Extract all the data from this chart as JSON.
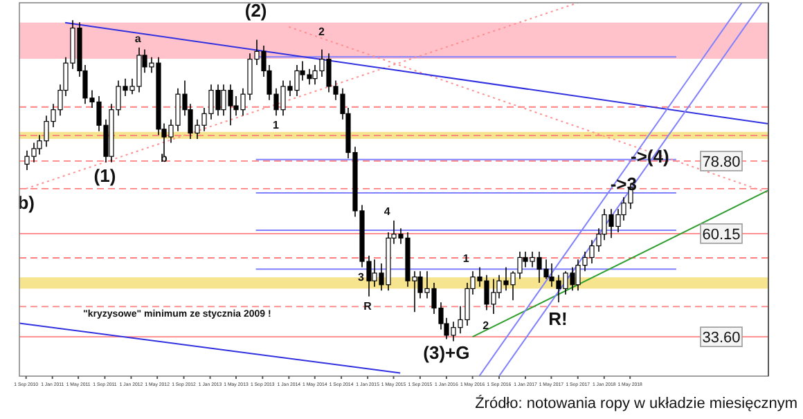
{
  "chart_data": {
    "type": "candlestick",
    "xlim": [
      "2010-08",
      "2020-02"
    ],
    "ylim": [
      23.5,
      119.5
    ],
    "tick_labels": "x",
    "grid": false,
    "xticks": [
      {
        "value": "2010-09",
        "label": "1 Sep 2010"
      },
      {
        "value": "2011-01",
        "label": "1 Jan 2011"
      },
      {
        "value": "2011-05",
        "label": "1 May 2011"
      },
      {
        "value": "2011-09",
        "label": "1 Sep 2011"
      },
      {
        "value": "2012-01",
        "label": "1 Jan 2012"
      },
      {
        "value": "2012-05",
        "label": "1 May 2012"
      },
      {
        "value": "2012-09",
        "label": "1 Sep 2012"
      },
      {
        "value": "2013-01",
        "label": "1 Jan 2013"
      },
      {
        "value": "2013-05",
        "label": "1 May 2013"
      },
      {
        "value": "2013-09",
        "label": "1 Sep 2013"
      },
      {
        "value": "2014-01",
        "label": "1 Jan 2014"
      },
      {
        "value": "2014-05",
        "label": "1 May 2014"
      },
      {
        "value": "2014-09",
        "label": "1 Sep 2014"
      },
      {
        "value": "2015-01",
        "label": "1 Jan 2015"
      },
      {
        "value": "2015-05",
        "label": "1 May 2015"
      },
      {
        "value": "2015-09",
        "label": "1 Sep 2015"
      },
      {
        "value": "2016-01",
        "label": "1 Jan 2016"
      },
      {
        "value": "2016-05",
        "label": "1 May 2016"
      },
      {
        "value": "2016-09",
        "label": "1 Sep 2016"
      },
      {
        "value": "2017-01",
        "label": "1 Jan 2017"
      },
      {
        "value": "2017-05",
        "label": "1 May 2017"
      },
      {
        "value": "2017-09",
        "label": "1 Sep 2017"
      },
      {
        "value": "2018-01",
        "label": "1 Jan 2018"
      },
      {
        "value": "2018-05",
        "label": "1 May 2018"
      }
    ],
    "bands": [
      {
        "axis": "y",
        "from": 105.1,
        "to": 114.4,
        "color": "#ffb6c1"
      },
      {
        "axis": "y",
        "from": 84.5,
        "to": 86.3,
        "color": "#f5e07a"
      },
      {
        "axis": "y",
        "from": 46.0,
        "to": 48.9,
        "color": "#f5e07a"
      }
    ],
    "ref_lines": [
      {
        "axis": "y",
        "value": 92.7,
        "color": "#ff8080",
        "line_style": "dashed"
      },
      {
        "axis": "y",
        "value": 85.4,
        "color": "#ff8080",
        "line_style": "dashed"
      },
      {
        "axis": "y",
        "value": 78.8,
        "label": "78.80",
        "color": "#ff8080",
        "line_style": "dashed"
      },
      {
        "axis": "y",
        "value": 71.7,
        "color": "#ff8080",
        "line_style": "dashed"
      },
      {
        "axis": "y",
        "value": 60.15,
        "label": "60.15",
        "color": "#ff8080",
        "line_style": "solid"
      },
      {
        "axis": "y",
        "value": 53.9,
        "color": "#ff8080",
        "line_style": "dashed"
      },
      {
        "axis": "y",
        "value": 41.4,
        "color": "#ff8080",
        "line_style": "dashed"
      },
      {
        "axis": "y",
        "value": 33.6,
        "label": "33.60",
        "color": "#ff8080",
        "line_style": "solid"
      }
    ],
    "series": [
      {
        "type": "line",
        "x": [
          "2013-08",
          "2018-12"
        ],
        "values": [
          105.6,
          105.6
        ],
        "color": "#8080ff",
        "line_style": "solid"
      },
      {
        "type": "line",
        "x": [
          "2013-08",
          "2018-12"
        ],
        "values": [
          79.2,
          79.2
        ],
        "color": "#8080ff",
        "line_style": "solid"
      },
      {
        "type": "line",
        "x": [
          "2013-08",
          "2018-12"
        ],
        "values": [
          70.6,
          70.6
        ],
        "color": "#8080ff",
        "line_style": "solid"
      },
      {
        "type": "line",
        "x": [
          "2013-08",
          "2018-12"
        ],
        "values": [
          61.0,
          61.0
        ],
        "color": "#8080ff",
        "line_style": "solid"
      },
      {
        "type": "line",
        "x": [
          "2013-08",
          "2018-12"
        ],
        "values": [
          51.0,
          51.0
        ],
        "color": "#8080ff",
        "line_style": "solid"
      },
      {
        "type": "line",
        "x": [
          "2010-09",
          "2017-09"
        ],
        "values": [
          71.7,
          119.5
        ],
        "color": "#ff9090",
        "line_style": "dotted"
      },
      {
        "type": "line",
        "x": [
          "2014-01",
          "2020-02"
        ],
        "values": [
          113.3,
          70.6
        ],
        "color": "#ff9090",
        "line_style": "dotted"
      },
      {
        "type": "line",
        "x": [
          "2011-03",
          "2020-02"
        ],
        "values": [
          114.4,
          88.4
        ],
        "color": "#3030e0",
        "line_style": "solid"
      },
      {
        "type": "line",
        "x": [
          "2010-08",
          "2015-06"
        ],
        "values": [
          37.1,
          24.3
        ],
        "color": "#3030e0",
        "line_style": "solid"
      },
      {
        "type": "line",
        "x": [
          "2016-05",
          "2020-02"
        ],
        "values": [
          33.6,
          71.3
        ],
        "color": "#2e9e2e",
        "line_style": "solid"
      },
      {
        "type": "line",
        "x": [
          "2016-06",
          "2019-10"
        ],
        "values": [
          23.5,
          119.5
        ],
        "color": "#8080ff",
        "line_style": "solid"
      },
      {
        "type": "line",
        "x": [
          "2016-09",
          "2020-01"
        ],
        "values": [
          23.5,
          119.5
        ],
        "color": "#8080ff",
        "line_style": "solid"
      },
      {
        "color": "#000000",
        "x": [
          "2010-09",
          "2010-10",
          "2010-11",
          "2010-12",
          "2011-01",
          "2011-02",
          "2011-03",
          "2011-04",
          "2011-05",
          "2011-06",
          "2011-07",
          "2011-08",
          "2011-09",
          "2011-10",
          "2011-11",
          "2011-12",
          "2012-01",
          "2012-02",
          "2012-03",
          "2012-04",
          "2012-05",
          "2012-06",
          "2012-07",
          "2012-08",
          "2012-09",
          "2012-10",
          "2012-11",
          "2012-12",
          "2013-01",
          "2013-02",
          "2013-03",
          "2013-04",
          "2013-05",
          "2013-06",
          "2013-07",
          "2013-08",
          "2013-09",
          "2013-10",
          "2013-11",
          "2013-12",
          "2014-01",
          "2014-02",
          "2014-03",
          "2014-04",
          "2014-05",
          "2014-06",
          "2014-07",
          "2014-08",
          "2014-09",
          "2014-10",
          "2014-11",
          "2014-12",
          "2015-01",
          "2015-02",
          "2015-03",
          "2015-04",
          "2015-05",
          "2015-06",
          "2015-07",
          "2015-08",
          "2015-09",
          "2015-10",
          "2015-11",
          "2015-12",
          "2016-01",
          "2016-02",
          "2016-03",
          "2016-04",
          "2016-05",
          "2016-06",
          "2016-07",
          "2016-08",
          "2016-09",
          "2016-10",
          "2016-11",
          "2016-12",
          "2017-01",
          "2017-02",
          "2017-03",
          "2017-04",
          "2017-05",
          "2017-06",
          "2017-07",
          "2017-08",
          "2017-09",
          "2017-10",
          "2017-11",
          "2017-12",
          "2018-01",
          "2018-02",
          "2018-03",
          "2018-04",
          "2018-05"
        ],
        "ohlc": [
          [
            78,
            81.5,
            76.5,
            80
          ],
          [
            80,
            83.5,
            78.5,
            82
          ],
          [
            82,
            85.5,
            80.5,
            84
          ],
          [
            84,
            90.5,
            82.5,
            89
          ],
          [
            89,
            93.5,
            87.5,
            92
          ],
          [
            92,
            98.5,
            90.5,
            97
          ],
          [
            97,
            105.5,
            95.5,
            104
          ],
          [
            104,
            115,
            102.5,
            113
          ],
          [
            113,
            114.5,
            100.5,
            102
          ],
          [
            102,
            103.5,
            93.5,
            95
          ],
          [
            95,
            97,
            92.5,
            94
          ],
          [
            94,
            95.5,
            86.5,
            88
          ],
          [
            88,
            89.5,
            78.5,
            80
          ],
          [
            80,
            93.5,
            78.5,
            92
          ],
          [
            92,
            99.5,
            90.5,
            98
          ],
          [
            98,
            100,
            95.5,
            97
          ],
          [
            97,
            100,
            96,
            98
          ],
          [
            98,
            108,
            96.5,
            106
          ],
          [
            106,
            107.5,
            101.5,
            103
          ],
          [
            103,
            105.5,
            101.5,
            104
          ],
          [
            104,
            105.5,
            85.5,
            87
          ],
          [
            87,
            88.5,
            80,
            85
          ],
          [
            85,
            89.5,
            83.5,
            88
          ],
          [
            88,
            97.5,
            86.5,
            96
          ],
          [
            96,
            99.5,
            90.5,
            92
          ],
          [
            92,
            93.5,
            84.5,
            86
          ],
          [
            86,
            89.5,
            84.5,
            88
          ],
          [
            88,
            92.5,
            86.5,
            91
          ],
          [
            91,
            98.5,
            89.5,
            97
          ],
          [
            97,
            98.5,
            90.5,
            92
          ],
          [
            92,
            98.5,
            90.5,
            97
          ],
          [
            97,
            98.5,
            88,
            93
          ],
          [
            93,
            95.5,
            90.5,
            92
          ],
          [
            92,
            97.5,
            90.5,
            96
          ],
          [
            96,
            106.5,
            94.5,
            105
          ],
          [
            105,
            110,
            103.5,
            107
          ],
          [
            107,
            108.5,
            100.5,
            102
          ],
          [
            102,
            103.5,
            94.5,
            96
          ],
          [
            96,
            97.5,
            90.5,
            92
          ],
          [
            92,
            99.5,
            90.5,
            98
          ],
          [
            98,
            99.5,
            95.5,
            97
          ],
          [
            97,
            103.5,
            95.5,
            102
          ],
          [
            102,
            104.5,
            99.5,
            101
          ],
          [
            101,
            102.5,
            98.5,
            100
          ],
          [
            100,
            103.5,
            98.5,
            102
          ],
          [
            102,
            107.5,
            100.5,
            105
          ],
          [
            105,
            106.5,
            96.5,
            98
          ],
          [
            98,
            99.5,
            94.5,
            96
          ],
          [
            96,
            97.5,
            89.5,
            91
          ],
          [
            91,
            92.5,
            79.5,
            81
          ],
          [
            81,
            82.5,
            64.5,
            66
          ],
          [
            66,
            67.5,
            51.5,
            53
          ],
          [
            53,
            54.5,
            44,
            48
          ],
          [
            48,
            53.5,
            46.5,
            50
          ],
          [
            50,
            52.5,
            45.5,
            47
          ],
          [
            47,
            60.5,
            45.5,
            59
          ],
          [
            59,
            63.5,
            57.5,
            60
          ],
          [
            60,
            61.5,
            57.5,
            59
          ],
          [
            59,
            60.5,
            46.5,
            48
          ],
          [
            48,
            50.5,
            40,
            49
          ],
          [
            49,
            50.5,
            43.5,
            45
          ],
          [
            45,
            50.5,
            43.5,
            46
          ],
          [
            46,
            47.5,
            39.5,
            41
          ],
          [
            41,
            42.5,
            35.5,
            37
          ],
          [
            37,
            38.5,
            33,
            34
          ],
          [
            34,
            37.5,
            32.5,
            36
          ],
          [
            36,
            41.5,
            34.5,
            38
          ],
          [
            38,
            47.5,
            36.5,
            46
          ],
          [
            46,
            50.5,
            44.5,
            49
          ],
          [
            49,
            51.5,
            46.5,
            48
          ],
          [
            48,
            49.5,
            40.5,
            42
          ],
          [
            42,
            48.5,
            39.5,
            45
          ],
          [
            45,
            49.5,
            43.5,
            48
          ],
          [
            48,
            51.5,
            45.5,
            47
          ],
          [
            47,
            50.5,
            43,
            50
          ],
          [
            50,
            55.5,
            48.5,
            54
          ],
          [
            54,
            55.5,
            51.5,
            53
          ],
          [
            53,
            55.5,
            51.5,
            54
          ],
          [
            54,
            55.5,
            47.5,
            51
          ],
          [
            51,
            53.5,
            48.5,
            49
          ],
          [
            49,
            52.5,
            46.5,
            48
          ],
          [
            48,
            49.5,
            42.5,
            46
          ],
          [
            46,
            50.5,
            44.5,
            50
          ],
          [
            50,
            51.5,
            45.5,
            47
          ],
          [
            47,
            53.5,
            45.5,
            52
          ],
          [
            52,
            55.5,
            50.5,
            54
          ],
          [
            54,
            58.5,
            52.5,
            57
          ],
          [
            57,
            61.5,
            55.5,
            60
          ],
          [
            60,
            66.5,
            58.5,
            65
          ],
          [
            65,
            66.5,
            59,
            62
          ],
          [
            62,
            66.5,
            60.5,
            65
          ],
          [
            65,
            69.5,
            63.5,
            68
          ],
          [
            68,
            73,
            66.5,
            72
          ]
        ]
      }
    ],
    "annotations": [
      {
        "text": "(1)",
        "x": "2011-09",
        "y": 78.5
      },
      {
        "text": "(2)",
        "x": "2013-08",
        "y": 114.0
      },
      {
        "text": "2",
        "x": "2014-06",
        "y": 109.8
      },
      {
        "text": "a",
        "x": "2012-02",
        "y": 108
      },
      {
        "text": "b",
        "x": "2012-06",
        "y": 82.0
      },
      {
        "text": "1",
        "x": "2013-11",
        "y": 90.5
      },
      {
        "text": "b)",
        "x": "2010-09",
        "y": 71.7
      },
      {
        "text": "3",
        "x": "2014-12",
        "y": 51.5
      },
      {
        "text": "R",
        "x": "2015-01",
        "y": 44
      },
      {
        "text": "4",
        "x": "2015-04",
        "y": 63.5
      },
      {
        "text": "(3)+G",
        "x": "2016-01",
        "y": 33
      },
      {
        "text": "1",
        "x": "2016-04",
        "y": 51.4
      },
      {
        "text": "2",
        "x": "2016-07",
        "y": 39.0
      },
      {
        "text": "R!",
        "x": "2017-06",
        "y": 41.8
      },
      {
        "text": "->3",
        "x": "2018-04",
        "y": 69.5
      },
      {
        "text": "->(4)",
        "x": "2018-08",
        "y": 80
      },
      {
        "text": "\"kryzysowe\" minimum ze stycznia 2009 !",
        "x": "2012-08",
        "y": 41.8
      },
      "Źródło: notowania ropy w układzie miesięcznym"
    ]
  }
}
